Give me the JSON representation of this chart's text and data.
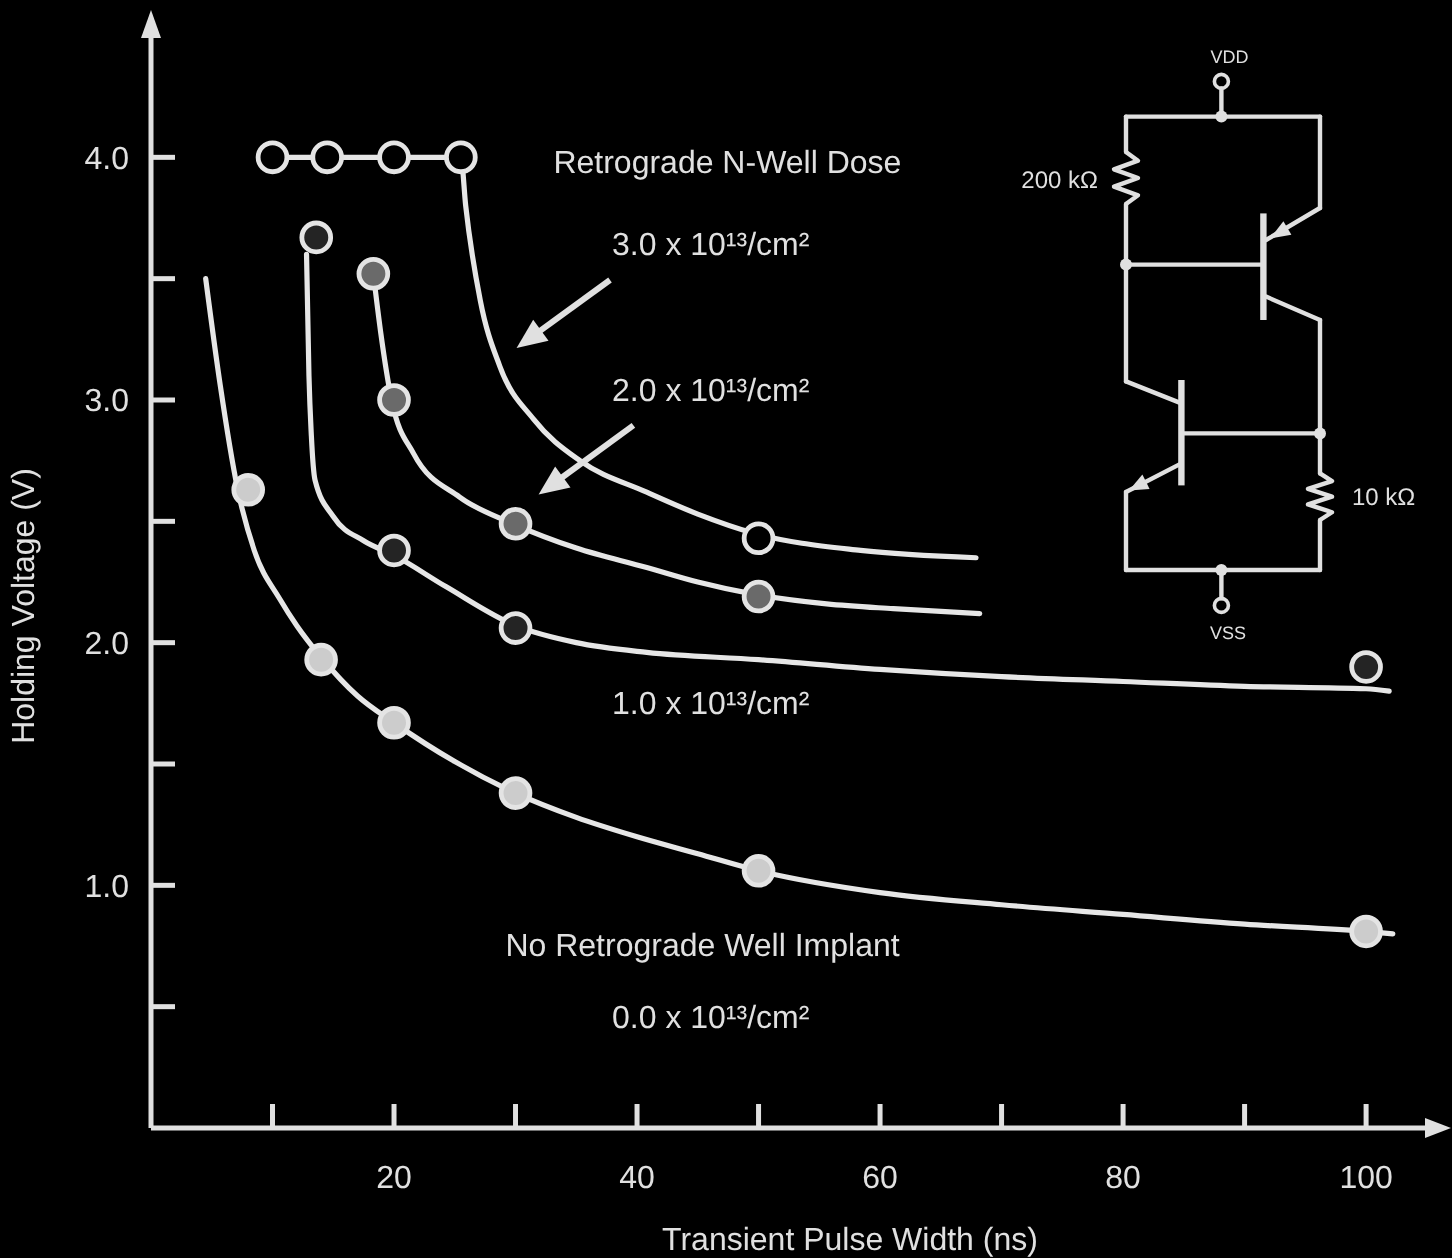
{
  "chart_data": {
    "type": "scatter",
    "xlabel": "Transient Pulse Width (ns)",
    "ylabel": "Holding Voltage (V)",
    "xlim": [
      0,
      106
    ],
    "ylim": [
      0,
      4.5
    ],
    "xticks": [
      {
        "value": 10,
        "label": null
      },
      20,
      {
        "value": 30,
        "label": null
      },
      40,
      {
        "value": 50,
        "label": null
      },
      60,
      {
        "value": 70,
        "label": null
      },
      80,
      {
        "value": 90,
        "label": null
      },
      100
    ],
    "yticks": [
      {
        "value": 0.5,
        "label": null
      },
      {
        "value": 1,
        "label": "1.0"
      },
      {
        "value": 1.5,
        "label": null
      },
      {
        "value": 2,
        "label": "2.0"
      },
      {
        "value": 2.5,
        "label": null
      },
      {
        "value": 3,
        "label": "3.0"
      },
      {
        "value": 3.5,
        "label": null
      },
      {
        "value": 4,
        "label": "4.0"
      }
    ],
    "marker": "circle",
    "annotations": [
      "Retrograde N-Well Dose",
      "3.0 x 10¹³/cm²",
      "2.0 x 10¹³/cm²",
      "1.0 x 10¹³/cm²",
      "No Retrograde Well Implant",
      "0.0 x 10¹³/cm²",
      "VDD",
      "200 kΩ",
      "10 kΩ",
      "VSS"
    ],
    "series": [
      {
        "type": "line",
        "marker": "none",
        "color": "#e6e6e6",
        "x": [
          10,
          14.5,
          20,
          25.5,
          25.9,
          27.1,
          28.7,
          31.5,
          35.3,
          40.8,
          45,
          49.7,
          58.4,
          67.9
        ],
        "values": [
          4.0,
          4.0,
          4.0,
          4.0,
          3.8,
          3.41,
          3.14,
          2.92,
          2.75,
          2.62,
          2.53,
          2.45,
          2.38,
          2.35
        ]
      },
      {
        "type": "line",
        "marker": "none",
        "color": "#e6e6e6",
        "x": [
          18.3,
          18.9,
          19.8,
          21.6,
          25.4,
          29.8,
          35,
          40.8,
          45,
          49.6,
          55.6,
          61.1,
          68.2
        ],
        "values": [
          3.52,
          3.28,
          3.0,
          2.78,
          2.6,
          2.49,
          2.39,
          2.31,
          2.25,
          2.2,
          2.16,
          2.14,
          2.12
        ]
      },
      {
        "type": "line",
        "marker": "none",
        "color": "#e6e6e6",
        "x": [
          12.8,
          13.0,
          13.2,
          13.5,
          15,
          17.5,
          20,
          24.3,
          30,
          35,
          40.8,
          50,
          60,
          70,
          80,
          90,
          100,
          101.9
        ],
        "values": [
          3.6,
          3.1,
          2.85,
          2.67,
          2.52,
          2.42,
          2.36,
          2.23,
          2.07,
          2.0,
          1.96,
          1.93,
          1.89,
          1.86,
          1.84,
          1.82,
          1.81,
          1.8
        ]
      },
      {
        "type": "line",
        "marker": "none",
        "color": "#e6e6e6",
        "x": [
          4.5,
          5.7,
          7.1,
          8.5,
          10.6,
          12,
          14,
          17,
          20,
          25,
          30,
          35,
          40,
          45,
          50,
          60,
          70,
          80,
          90,
          100,
          102.2
        ],
        "values": [
          3.5,
          3.06,
          2.64,
          2.38,
          2.18,
          2.07,
          1.94,
          1.78,
          1.67,
          1.51,
          1.38,
          1.28,
          1.2,
          1.13,
          1.06,
          0.97,
          0.92,
          0.88,
          0.84,
          0.81,
          0.8
        ]
      },
      {
        "color": "#000000",
        "x": [
          10,
          14.5,
          20,
          25.5,
          50
        ],
        "values": [
          4.0,
          4.0,
          4.0,
          4.0,
          2.43
        ]
      },
      {
        "color": "#6a6a6a",
        "x": [
          18.3,
          20,
          30,
          50
        ],
        "values": [
          3.52,
          3.0,
          2.49,
          2.19
        ]
      },
      {
        "color": "#242424",
        "x": [
          13.6,
          20,
          30,
          100
        ],
        "values": [
          3.67,
          2.38,
          2.06,
          1.9
        ]
      },
      {
        "color": "#cccccc",
        "x": [
          8,
          14,
          20,
          30,
          50,
          100
        ],
        "values": [
          2.63,
          1.93,
          1.67,
          1.38,
          1.06,
          0.81
        ]
      }
    ]
  }
}
